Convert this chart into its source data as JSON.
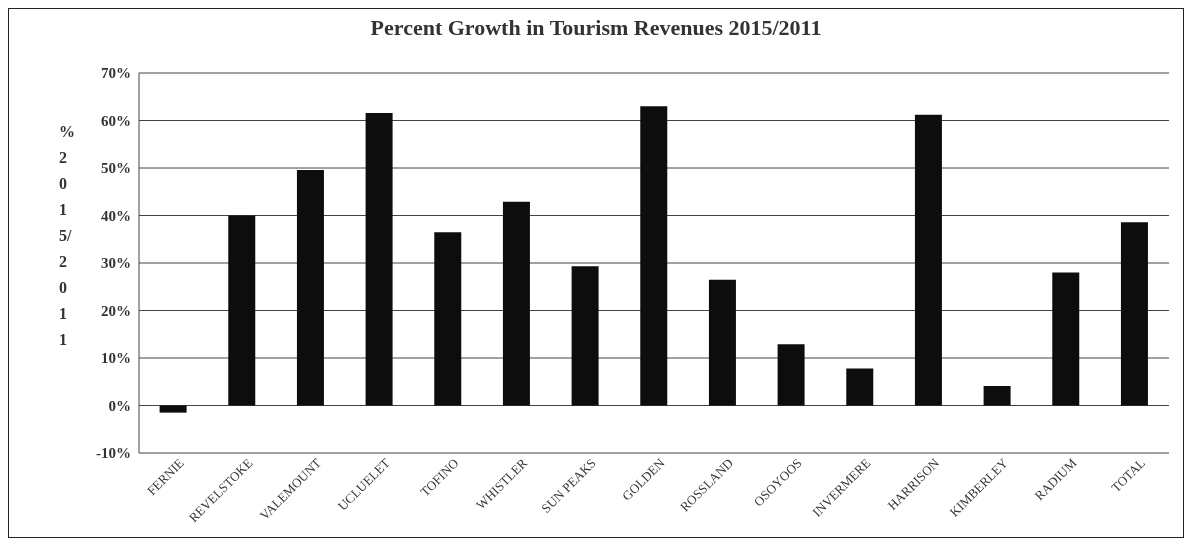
{
  "chart_data": {
    "type": "bar",
    "title": "Percent Growth in Tourism Revenues 2015/2011",
    "ylabel": "% 2015/2011",
    "categories": [
      "FERNIE",
      "REVELSTOKE",
      "VALEMOUNT",
      "UCLUELET",
      "TOFINO",
      "WHISTLER",
      "SUN PEAKS",
      "GOLDEN",
      "ROSSLAND",
      "OSOYOOS",
      "INVERMERE",
      "HARRISON",
      "KIMBERLEY",
      "RADIUM",
      "TOTAL"
    ],
    "values": [
      -1.5,
      40,
      49.6,
      61.6,
      36.5,
      42.9,
      29.3,
      63,
      26.5,
      12.9,
      7.8,
      61.2,
      4.1,
      28,
      38.6
    ],
    "color": "#0d0d0d",
    "ylim": [
      -10,
      70
    ],
    "yticks": [
      {
        "value": -10,
        "label": "-10%"
      },
      {
        "value": 0,
        "label": "0%"
      },
      {
        "value": 10,
        "label": "10%"
      },
      {
        "value": 20,
        "label": "20%"
      },
      {
        "value": 30,
        "label": "30%"
      },
      {
        "value": 40,
        "label": "40%"
      },
      {
        "value": 50,
        "label": "50%"
      },
      {
        "value": 60,
        "label": "60%"
      },
      {
        "value": 70,
        "label": "70%"
      }
    ],
    "grid": "y",
    "legend": false
  }
}
